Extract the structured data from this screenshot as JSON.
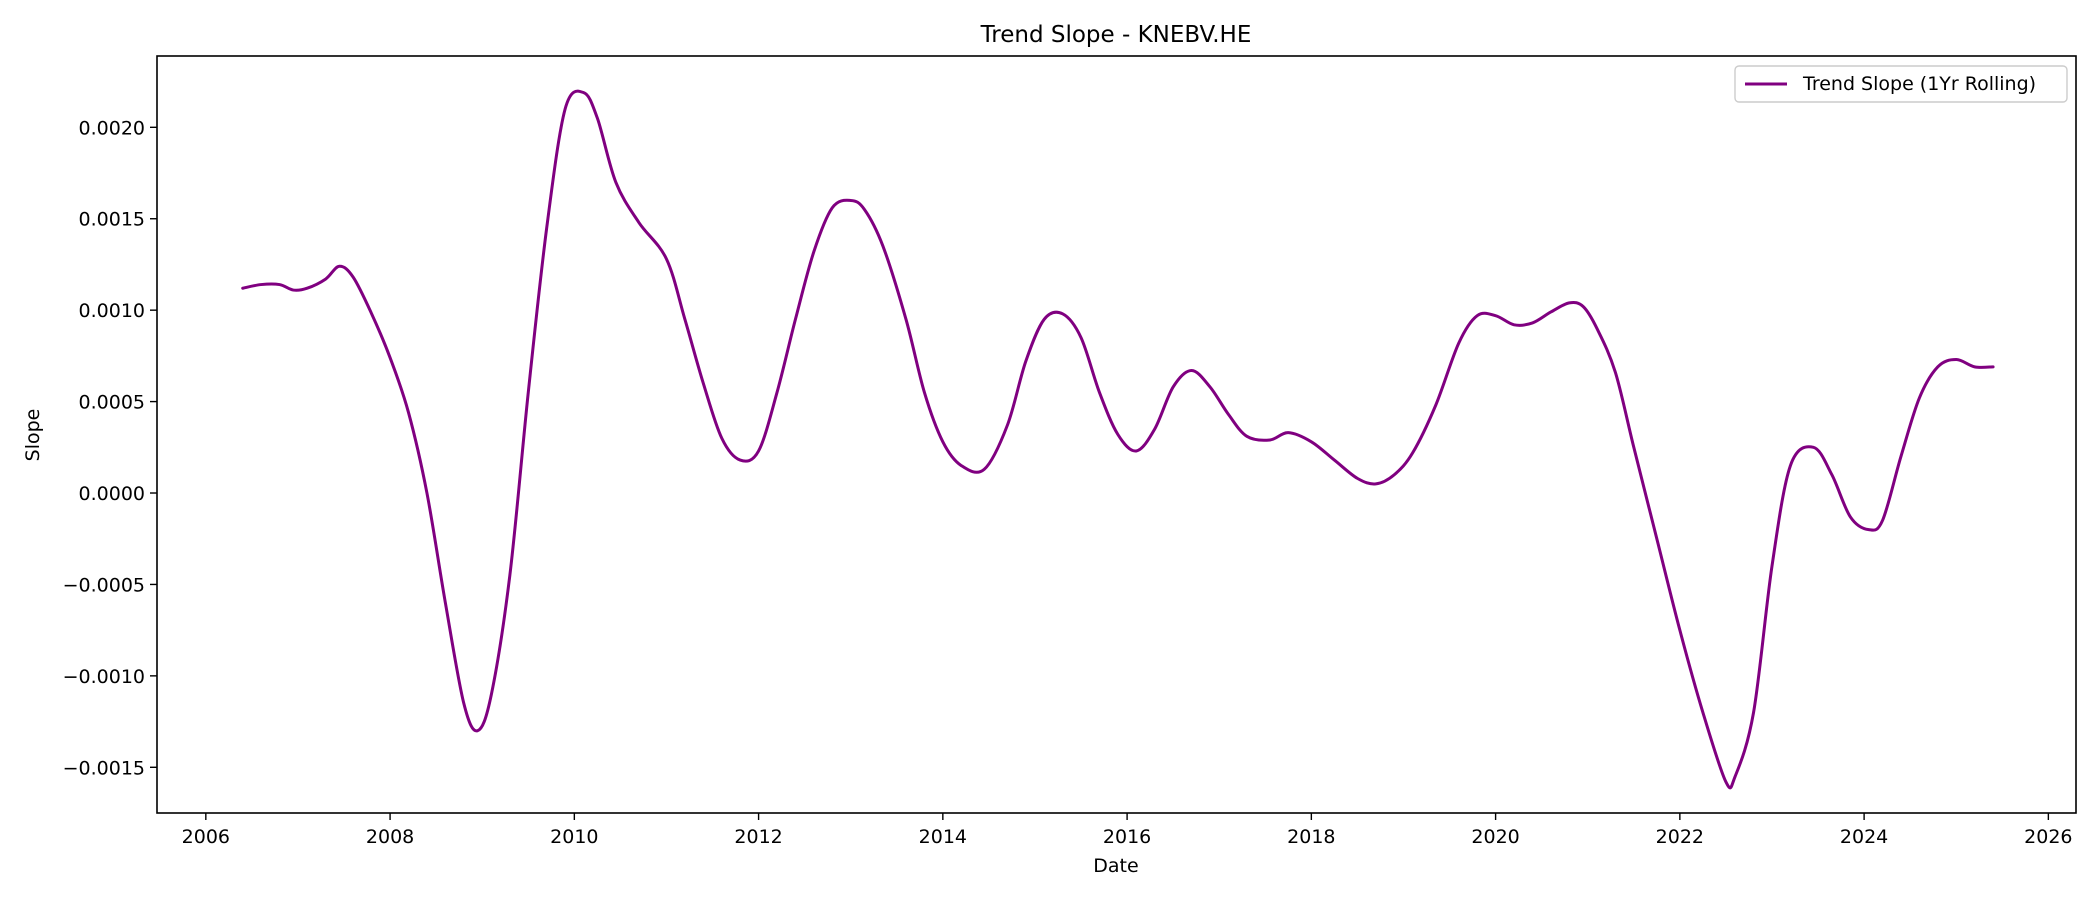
{
  "chart_data": {
    "type": "line",
    "title": "Trend Slope - KNEBV.HE",
    "xlabel": "Date",
    "ylabel": "Slope",
    "xlim": [
      2005.47,
      2026.3
    ],
    "ylim": [
      -0.00175,
      0.00239
    ],
    "x_ticks": [
      2006,
      2008,
      2010,
      2012,
      2014,
      2016,
      2018,
      2020,
      2022,
      2024,
      2026
    ],
    "x_tick_labels": [
      "2006",
      "2008",
      "2010",
      "2012",
      "2014",
      "2016",
      "2018",
      "2020",
      "2022",
      "2024",
      "2026"
    ],
    "y_ticks": [
      -0.0015,
      -0.001,
      -0.0005,
      0.0,
      0.0005,
      0.001,
      0.0015,
      0.002
    ],
    "y_tick_labels": [
      "−0.0015",
      "−0.0010",
      "−0.0005",
      "0.0000",
      "0.0005",
      "0.0010",
      "0.0015",
      "0.0020"
    ],
    "grid": false,
    "legend_position": "top-right",
    "series": [
      {
        "name": "Trend Slope (1Yr Rolling)",
        "color": "#800080",
        "x": [
          2006.4,
          2006.6,
          2006.8,
          2006.95,
          2007.1,
          2007.3,
          2007.45,
          2007.6,
          2007.8,
          2008.0,
          2008.2,
          2008.4,
          2008.6,
          2008.8,
          2008.95,
          2009.1,
          2009.3,
          2009.5,
          2009.7,
          2009.9,
          2010.1,
          2010.25,
          2010.45,
          2010.7,
          2011.0,
          2011.2,
          2011.4,
          2011.6,
          2011.8,
          2012.0,
          2012.2,
          2012.4,
          2012.6,
          2012.8,
          2013.0,
          2013.15,
          2013.35,
          2013.6,
          2013.8,
          2014.0,
          2014.2,
          2014.45,
          2014.7,
          2014.9,
          2015.1,
          2015.3,
          2015.5,
          2015.7,
          2015.9,
          2016.1,
          2016.3,
          2016.5,
          2016.7,
          2016.9,
          2017.1,
          2017.3,
          2017.55,
          2017.75,
          2018.0,
          2018.25,
          2018.5,
          2018.7,
          2018.9,
          2019.1,
          2019.35,
          2019.6,
          2019.8,
          2020.0,
          2020.2,
          2020.4,
          2020.6,
          2020.8,
          2020.95,
          2021.1,
          2021.3,
          2021.5,
          2021.75,
          2022.0,
          2022.25,
          2022.5,
          2022.6,
          2022.8,
          2023.0,
          2023.2,
          2023.45,
          2023.65,
          2023.85,
          2024.05,
          2024.2,
          2024.4,
          2024.6,
          2024.8,
          2025.0,
          2025.2,
          2025.4
        ],
        "values": [
          0.00112,
          0.00114,
          0.00114,
          0.00111,
          0.00112,
          0.00117,
          0.00124,
          0.00118,
          0.00098,
          0.00074,
          0.00044,
          0.0,
          -0.0006,
          -0.00115,
          -0.0013,
          -0.0011,
          -0.00045,
          0.00055,
          0.00145,
          0.0021,
          0.00219,
          0.00205,
          0.0017,
          0.00148,
          0.00128,
          0.00095,
          0.0006,
          0.0003,
          0.00018,
          0.00023,
          0.00055,
          0.00095,
          0.00132,
          0.00156,
          0.0016,
          0.00155,
          0.00135,
          0.00095,
          0.00055,
          0.00028,
          0.00015,
          0.00013,
          0.00037,
          0.00072,
          0.00095,
          0.00098,
          0.00085,
          0.00055,
          0.00032,
          0.00023,
          0.00035,
          0.00058,
          0.00067,
          0.00058,
          0.00043,
          0.00031,
          0.00029,
          0.00033,
          0.00028,
          0.00018,
          8e-05,
          5e-05,
          0.0001,
          0.00022,
          0.00048,
          0.00082,
          0.00097,
          0.00097,
          0.00092,
          0.00093,
          0.00099,
          0.00104,
          0.00102,
          0.0009,
          0.00066,
          0.00025,
          -0.00025,
          -0.00075,
          -0.0012,
          -0.00158,
          -0.00155,
          -0.0012,
          -0.0004,
          0.00015,
          0.00025,
          0.0001,
          -0.00013,
          -0.0002,
          -0.00015,
          0.0002,
          0.00052,
          0.00069,
          0.00073,
          0.00069,
          0.00069
        ]
      }
    ]
  }
}
